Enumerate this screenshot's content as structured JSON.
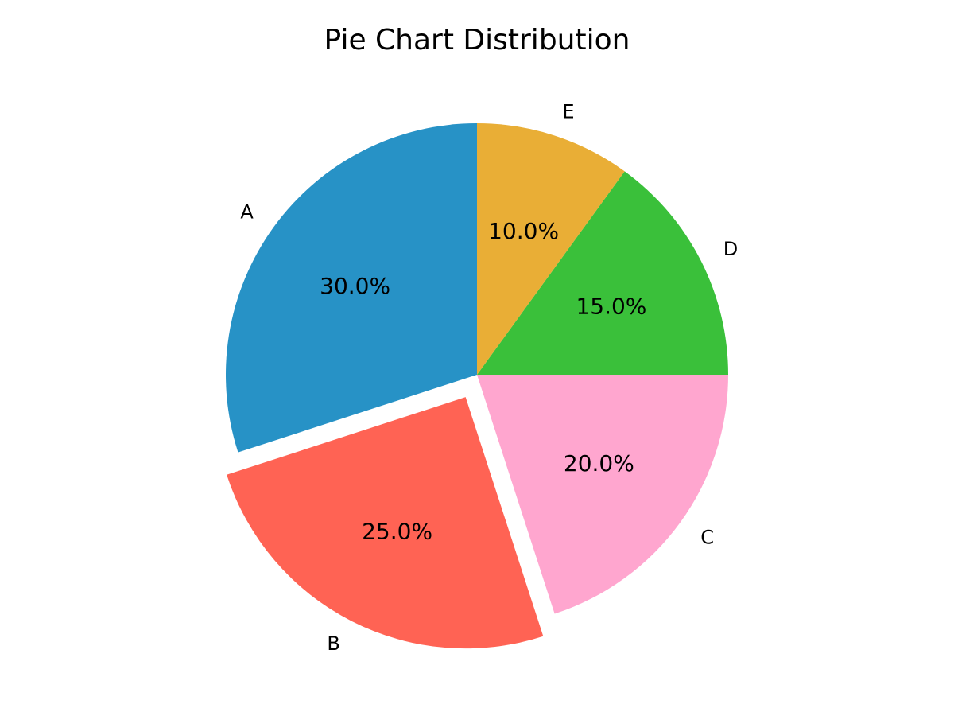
{
  "chart_data": {
    "type": "pie",
    "title": "Pie Chart Distribution",
    "slices": [
      {
        "label": "A",
        "value": 30.0,
        "pct_label": "30.0%",
        "color": "#2792c6",
        "exploded": false
      },
      {
        "label": "B",
        "value": 25.0,
        "pct_label": "25.0%",
        "color": "#ff6354",
        "exploded": true
      },
      {
        "label": "C",
        "value": 20.0,
        "pct_label": "20.0%",
        "color": "#ffa6cf",
        "exploded": false
      },
      {
        "label": "D",
        "value": 15.0,
        "pct_label": "15.0%",
        "color": "#3ac03a",
        "exploded": false
      },
      {
        "label": "E",
        "value": 10.0,
        "pct_label": "10.0%",
        "color": "#e9ae36",
        "exploded": false
      }
    ],
    "start_angle_deg": 90,
    "direction": "counterclockwise",
    "legend": "none"
  }
}
